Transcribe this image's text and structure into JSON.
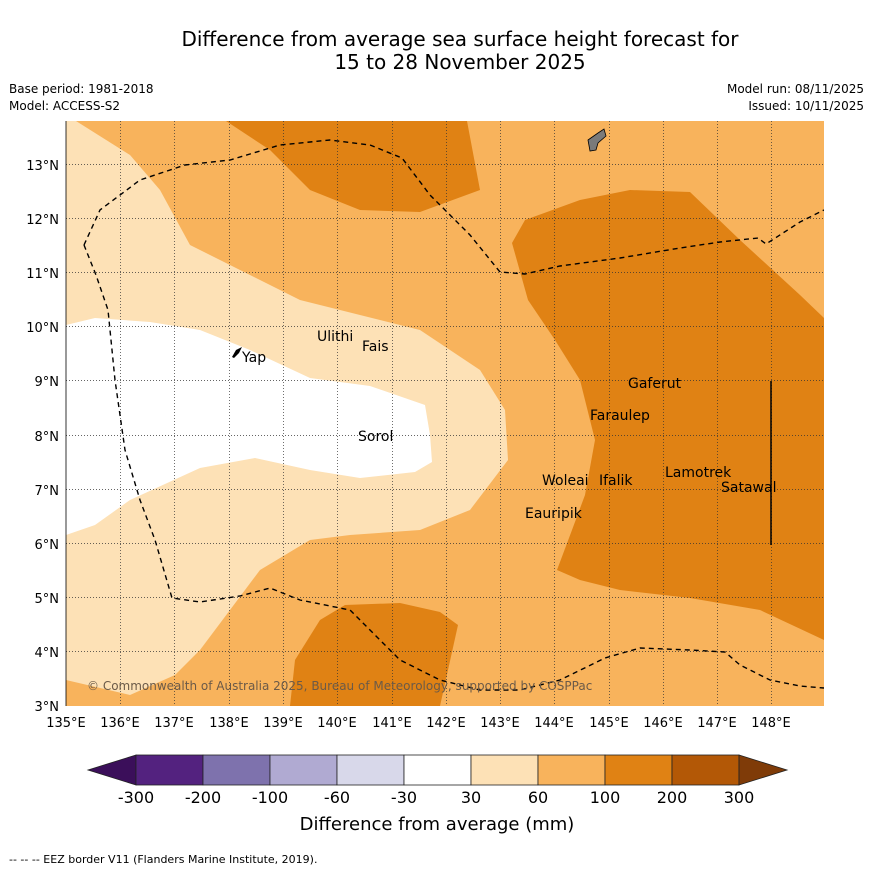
{
  "title": {
    "line1": "Difference from average sea surface height forecast for",
    "line2": "15 to 28 November 2025"
  },
  "meta": {
    "base_period": "Base period: 1981-2018",
    "model": "Model: ACCESS-S2",
    "model_run": "Model run: 08/11/2025",
    "issued": "Issued: 10/11/2025"
  },
  "map": {
    "lon_ticks": [
      "135°E",
      "136°E",
      "137°E",
      "138°E",
      "139°E",
      "140°E",
      "141°E",
      "142°E",
      "143°E",
      "144°E",
      "145°E",
      "146°E",
      "147°E",
      "148°E"
    ],
    "lat_ticks": [
      "13°N",
      "12°N",
      "11°N",
      "10°N",
      "9°N",
      "8°N",
      "7°N",
      "6°N",
      "5°N",
      "4°N",
      "3°N"
    ],
    "copyright": "© Commonwealth of Australia 2025, Bureau of Meteorology, supported by COSPPac",
    "places": [
      {
        "name": "Yap"
      },
      {
        "name": "Ulithi"
      },
      {
        "name": "Fais"
      },
      {
        "name": "Sorol"
      },
      {
        "name": "Gaferut"
      },
      {
        "name": "Faraulep"
      },
      {
        "name": "Woleai"
      },
      {
        "name": "Ifalik"
      },
      {
        "name": "Lamotrek"
      },
      {
        "name": "Satawal"
      },
      {
        "name": "Eauripik"
      }
    ]
  },
  "colorbar": {
    "ticks": [
      "-300",
      "-200",
      "-100",
      "-60",
      "-30",
      "30",
      "60",
      "100",
      "200",
      "300"
    ],
    "colors": [
      "#3b0f5a",
      "#53227f",
      "#7e72ad",
      "#b0aad2",
      "#d8d8ea",
      "#ffffff",
      "#fde1b6",
      "#f8b35c",
      "#e08214",
      "#b35806",
      "#7f3b08"
    ],
    "label": "Difference from average (mm)"
  },
  "legend_note": "--  --  -- EEZ border V11 (Flanders Marine Institute, 2019)."
}
